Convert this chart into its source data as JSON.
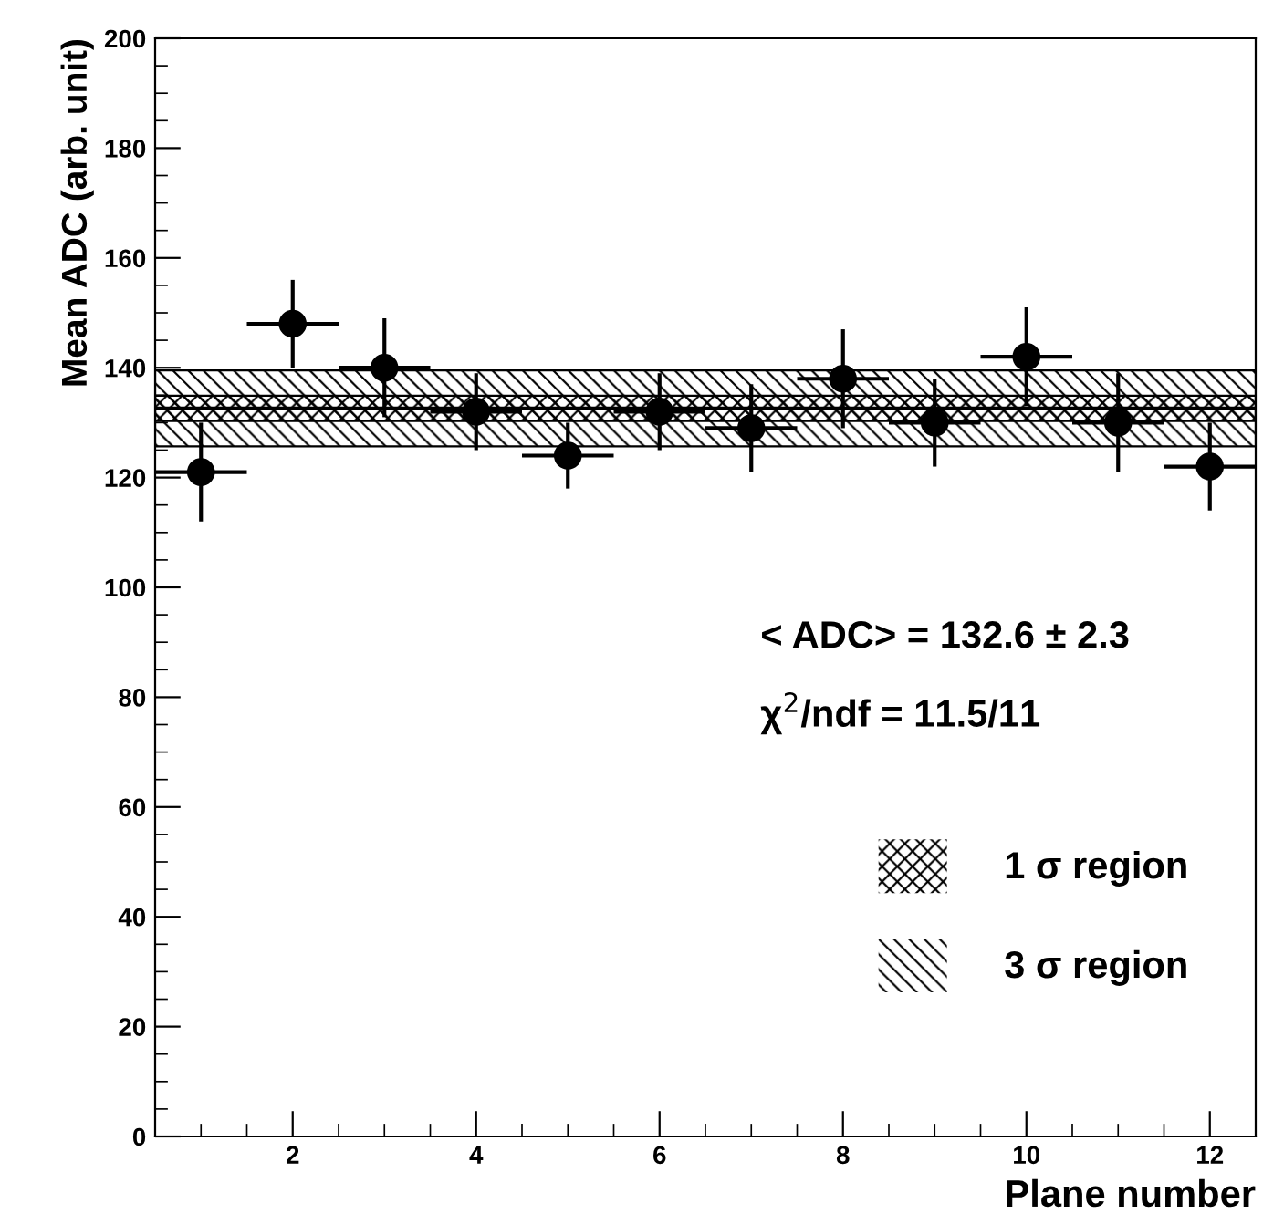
{
  "chart_data": {
    "type": "scatter",
    "xlabel": "Plane number",
    "ylabel": "Mean ADC (arb. unit)",
    "x": [
      1,
      2,
      3,
      4,
      5,
      6,
      7,
      8,
      9,
      10,
      11,
      12
    ],
    "series": [
      {
        "color": "#000000",
        "values": [
          121,
          148,
          140,
          132,
          124,
          132,
          129,
          138,
          130,
          142,
          130,
          122
        ],
        "errors": [
          9,
          8,
          9,
          7,
          6,
          7,
          8,
          9,
          8,
          9,
          9,
          8
        ],
        "xerrors": [
          0.5,
          0.5,
          0.5,
          0.5,
          0.5,
          0.5,
          0.5,
          0.5,
          0.5,
          0.5,
          0.5,
          0.5
        ]
      }
    ],
    "marker": "circle",
    "xlim": [
      0.5,
      12.5
    ],
    "xticks": [
      2,
      4,
      6,
      8,
      10,
      12
    ],
    "ylim": [
      0,
      200
    ],
    "yticks": [
      0,
      20,
      40,
      60,
      80,
      100,
      120,
      140,
      160,
      180,
      200
    ],
    "ref_lines": [
      {
        "axis": "y",
        "value": 132.6,
        "color": "#000000",
        "line_style": "solid"
      }
    ],
    "bands": [
      {
        "axis": "y",
        "from": 130.3,
        "to": 134.9,
        "label": "1 σ region",
        "color": "#000000"
      },
      {
        "axis": "y",
        "from": 125.7,
        "to": 139.5,
        "label": "3 σ region",
        "color": "#000000"
      }
    ],
    "annotations": [
      "< ADC> = 132.6 ± 2.3",
      "χ$^{2}$/ndf = 11.5/11"
    ],
    "legend": "bottom right",
    "grid": false
  }
}
